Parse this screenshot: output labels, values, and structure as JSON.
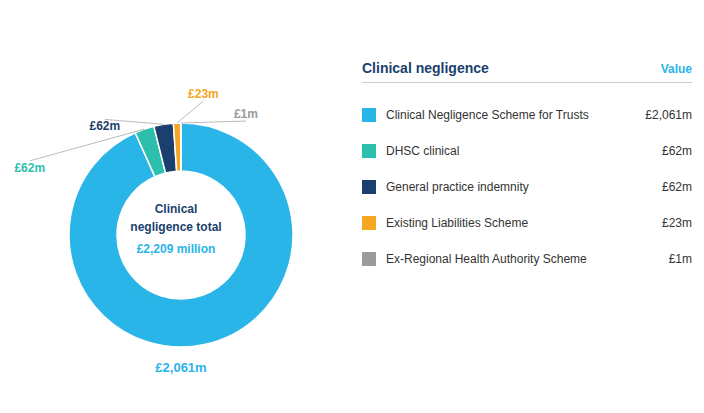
{
  "chart_data": {
    "type": "donut",
    "title": [
      "Clinical",
      "negligence total"
    ],
    "subtitle": "£2,209 million",
    "categories": [
      "Clinical Negligence Scheme for Trusts",
      "DHSC clinical",
      "General practice indemnity",
      "Existing Liabilities Scheme",
      "Ex-Regional Health Authority Scheme"
    ],
    "values": [
      2061,
      62,
      62,
      23,
      1
    ],
    "value_labels": [
      "£2,061m",
      "£62m",
      "£62m",
      "£23m",
      "£1m"
    ],
    "colors": [
      "#29B5E8",
      "#2DBFAD",
      "#1B3F6E",
      "#F5A623",
      "#9B9B9B"
    ],
    "data_labels": true,
    "legend": "right",
    "legend_title": "Clinical negligence",
    "legend_value_header": "Value"
  }
}
